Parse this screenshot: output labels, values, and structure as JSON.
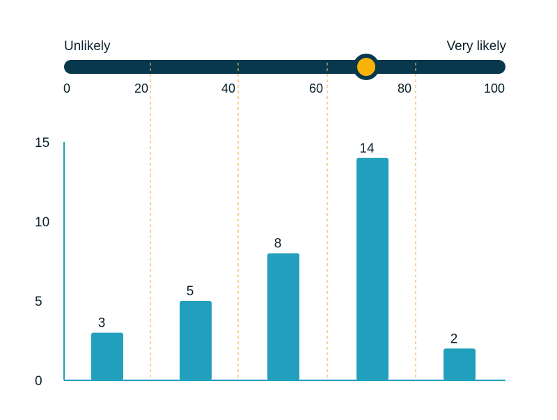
{
  "slider": {
    "left_label": "Unlikely",
    "right_label": "Very likely",
    "ticks": [
      "0",
      "20",
      "40",
      "60",
      "80",
      "100"
    ],
    "value": 70,
    "min": 0,
    "max": 100
  },
  "colors": {
    "bar": "#229fbd",
    "track": "#07384d",
    "knob": "#f9b208",
    "divider": "#f3b456",
    "axis": "#229fbd"
  },
  "chart_data": {
    "type": "bar",
    "categories": [
      "0-20",
      "20-40",
      "40-60",
      "60-80",
      "80-100"
    ],
    "values": [
      3,
      5,
      8,
      14,
      2
    ],
    "data_labels": [
      "3",
      "5",
      "8",
      "14",
      "2"
    ],
    "y_ticks": [
      "0",
      "5",
      "10",
      "15"
    ],
    "ylim": [
      0,
      15
    ],
    "title": "",
    "xlabel": "",
    "ylabel": "",
    "grid": false
  }
}
